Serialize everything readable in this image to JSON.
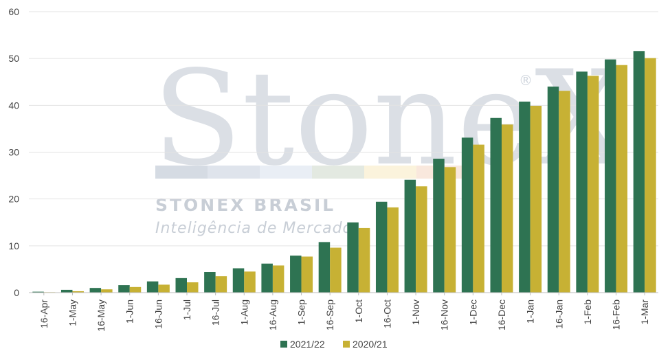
{
  "colors": {
    "series_2122": "#2e7352",
    "series_2021": "#c7b134",
    "grid": "#e3e3e3",
    "watermark": "#cfd5dd",
    "watermark_stripes": [
      "#d5dbe3",
      "#dfe4ec",
      "#e9eef5",
      "#e3e9e1",
      "#fbf3dc",
      "#f9e8dd"
    ]
  },
  "watermark": {
    "brand": "StoneX",
    "registered": "®",
    "line1": "STONEX BRASIL",
    "line2": "Inteligência de Mercado"
  },
  "chart_data": {
    "type": "bar",
    "categories": [
      "16-Apr",
      "1-May",
      "16-May",
      "1-Jun",
      "16-Jun",
      "1-Jul",
      "16-Jul",
      "1-Aug",
      "16-Aug",
      "1-Sep",
      "16-Sep",
      "1-Oct",
      "16-Oct",
      "1-Nov",
      "16-Nov",
      "1-Dec",
      "16-Dec",
      "1-Jan",
      "16-Jan",
      "1-Feb",
      "16-Feb",
      "1-Mar"
    ],
    "series": [
      {
        "name": "2021/22",
        "values": [
          0.2,
          0.6,
          1.0,
          1.6,
          2.4,
          3.1,
          4.4,
          5.2,
          6.2,
          7.9,
          10.8,
          15.0,
          19.4,
          24.1,
          28.6,
          33.1,
          37.3,
          40.8,
          44.0,
          47.2,
          49.8,
          51.6
        ]
      },
      {
        "name": "2020/21",
        "values": [
          0.1,
          0.3,
          0.7,
          1.2,
          1.7,
          2.2,
          3.5,
          4.5,
          5.8,
          7.7,
          9.6,
          13.8,
          18.2,
          22.7,
          26.8,
          31.6,
          35.9,
          39.9,
          43.1,
          46.3,
          48.6,
          50.1
        ]
      }
    ],
    "yticks": [
      0,
      10,
      20,
      30,
      40,
      50,
      60
    ],
    "ylim": [
      0,
      60
    ],
    "grid": true,
    "legend": "bottom-center",
    "title": "",
    "xlabel": "",
    "ylabel": ""
  }
}
